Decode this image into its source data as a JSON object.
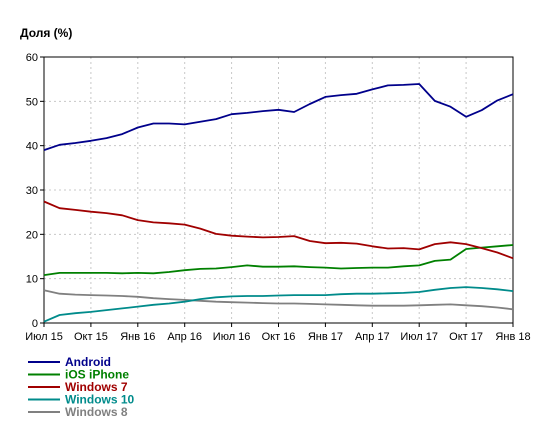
{
  "chart_data": {
    "type": "line",
    "ylabel": "Доля (%)",
    "xlabel": "",
    "title": "",
    "ylim": [
      0,
      60
    ],
    "yticks": [
      "0",
      "10",
      "20",
      "30",
      "40",
      "50",
      "60"
    ],
    "xtick_labels": [
      "Июл 15",
      "Окт 15",
      "Янв 16",
      "Апр 16",
      "Июл 16",
      "Окт 16",
      "Янв 17",
      "Апр 17",
      "Июл 17",
      "Окт 17",
      "Янв 18"
    ],
    "grid": true,
    "legend_position": "bottom-left",
    "x": [
      "2015-07",
      "2015-08",
      "2015-09",
      "2015-10",
      "2015-11",
      "2015-12",
      "2016-01",
      "2016-02",
      "2016-03",
      "2016-04",
      "2016-05",
      "2016-06",
      "2016-07",
      "2016-08",
      "2016-09",
      "2016-10",
      "2016-11",
      "2016-12",
      "2017-01",
      "2017-02",
      "2017-03",
      "2017-04",
      "2017-05",
      "2017-06",
      "2017-07",
      "2017-08",
      "2017-09",
      "2017-10",
      "2017-11",
      "2017-12",
      "2018-01"
    ],
    "series": [
      {
        "name": "Android",
        "color": "#00008b",
        "values": [
          39.0,
          40.2,
          40.6,
          41.1,
          41.7,
          42.6,
          44.1,
          45.0,
          45.0,
          44.8,
          45.4,
          46.0,
          47.1,
          47.4,
          47.8,
          48.1,
          47.6,
          49.4,
          51.0,
          51.4,
          51.7,
          52.7,
          53.6,
          53.7,
          53.9,
          50.1,
          48.8,
          46.5,
          48.0,
          50.2,
          51.6
        ]
      },
      {
        "name": "iOS iPhone",
        "color": "#008000",
        "values": [
          10.8,
          11.3,
          11.3,
          11.3,
          11.3,
          11.2,
          11.3,
          11.2,
          11.5,
          11.9,
          12.2,
          12.3,
          12.6,
          13.0,
          12.7,
          12.7,
          12.8,
          12.6,
          12.5,
          12.3,
          12.4,
          12.5,
          12.5,
          12.8,
          13.0,
          14.0,
          14.3,
          16.7,
          17.0,
          17.3,
          17.6
        ]
      },
      {
        "name": "Windows 7",
        "color": "#a00000",
        "values": [
          27.4,
          25.9,
          25.5,
          25.1,
          24.8,
          24.3,
          23.2,
          22.7,
          22.5,
          22.2,
          21.3,
          20.1,
          19.7,
          19.5,
          19.3,
          19.4,
          19.6,
          18.5,
          18.0,
          18.1,
          17.9,
          17.3,
          16.8,
          16.9,
          16.6,
          17.8,
          18.2,
          17.8,
          16.9,
          15.9,
          14.6
        ]
      },
      {
        "name": "Windows 10",
        "color": "#008b8b",
        "values": [
          0.3,
          1.8,
          2.2,
          2.5,
          2.9,
          3.3,
          3.7,
          4.1,
          4.4,
          4.8,
          5.4,
          5.8,
          6.0,
          6.1,
          6.1,
          6.2,
          6.3,
          6.3,
          6.3,
          6.5,
          6.6,
          6.6,
          6.7,
          6.8,
          7.0,
          7.5,
          7.9,
          8.1,
          7.9,
          7.6,
          7.2
        ]
      },
      {
        "name": "Windows 8",
        "color": "#808080",
        "values": [
          7.4,
          6.6,
          6.4,
          6.3,
          6.2,
          6.1,
          5.9,
          5.6,
          5.4,
          5.2,
          5.0,
          4.8,
          4.7,
          4.6,
          4.5,
          4.4,
          4.4,
          4.3,
          4.2,
          4.1,
          4.0,
          3.9,
          3.9,
          3.9,
          4.0,
          4.1,
          4.2,
          4.0,
          3.8,
          3.5,
          3.1
        ]
      }
    ]
  }
}
